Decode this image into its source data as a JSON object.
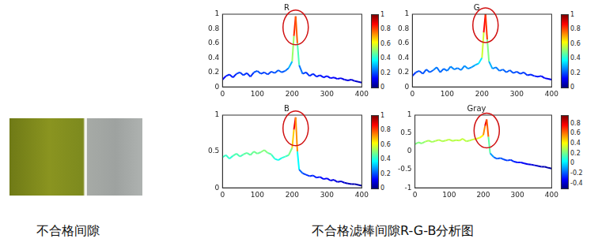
{
  "chart_data": [
    {
      "type": "line",
      "title": "R",
      "x": [
        0,
        10,
        20,
        30,
        40,
        50,
        60,
        70,
        80,
        90,
        100,
        110,
        120,
        130,
        140,
        150,
        160,
        170,
        180,
        190,
        200,
        205,
        210,
        215,
        220,
        230,
        240,
        250,
        260,
        270,
        280,
        290,
        300,
        310,
        320,
        330,
        340,
        350,
        360,
        370,
        380,
        390,
        400
      ],
      "values": [
        0.1,
        0.15,
        0.17,
        0.13,
        0.18,
        0.2,
        0.16,
        0.19,
        0.14,
        0.2,
        0.22,
        0.18,
        0.2,
        0.17,
        0.21,
        0.19,
        0.23,
        0.2,
        0.22,
        0.26,
        0.35,
        0.7,
        0.97,
        0.6,
        0.3,
        0.18,
        0.2,
        0.15,
        0.18,
        0.14,
        0.16,
        0.13,
        0.15,
        0.12,
        0.13,
        0.11,
        0.12,
        0.1,
        0.09,
        0.1,
        0.08,
        0.07,
        0.06
      ],
      "xlim": [
        0,
        400
      ],
      "xticks": [
        0,
        100,
        200,
        300,
        400
      ],
      "ylim": [
        0,
        1
      ],
      "yticks": [
        0,
        0.2,
        0.4,
        0.6,
        0.8,
        1
      ],
      "grid": false,
      "colorbar": {
        "range": [
          0,
          1
        ],
        "ticks": [
          0,
          0.2,
          0.4,
          0.6,
          0.8,
          1
        ]
      }
    },
    {
      "type": "line",
      "title": "G",
      "x": [
        0,
        10,
        20,
        30,
        40,
        50,
        60,
        70,
        80,
        90,
        100,
        110,
        120,
        130,
        140,
        150,
        160,
        170,
        180,
        190,
        200,
        205,
        210,
        215,
        220,
        230,
        240,
        250,
        260,
        270,
        280,
        290,
        300,
        310,
        320,
        330,
        340,
        350,
        360,
        370,
        380,
        390,
        400
      ],
      "values": [
        0.15,
        0.2,
        0.22,
        0.18,
        0.24,
        0.2,
        0.23,
        0.27,
        0.2,
        0.25,
        0.22,
        0.28,
        0.24,
        0.26,
        0.23,
        0.29,
        0.25,
        0.27,
        0.3,
        0.32,
        0.4,
        0.75,
        1.0,
        0.65,
        0.35,
        0.25,
        0.27,
        0.22,
        0.24,
        0.2,
        0.23,
        0.19,
        0.21,
        0.18,
        0.2,
        0.16,
        0.17,
        0.15,
        0.14,
        0.15,
        0.12,
        0.11,
        0.1
      ],
      "xlim": [
        0,
        400
      ],
      "xticks": [
        0,
        100,
        200,
        300,
        400
      ],
      "ylim": [
        0,
        1
      ],
      "yticks": [
        0,
        0.2,
        0.4,
        0.6,
        0.8,
        1
      ],
      "grid": false,
      "colorbar": {
        "range": [
          0,
          1
        ],
        "ticks": [
          0,
          0.2,
          0.4,
          0.6,
          0.8,
          1
        ]
      }
    },
    {
      "type": "line",
      "title": "B",
      "x": [
        0,
        10,
        20,
        30,
        40,
        50,
        60,
        70,
        80,
        90,
        100,
        110,
        120,
        130,
        140,
        150,
        160,
        170,
        180,
        190,
        200,
        205,
        210,
        215,
        220,
        230,
        240,
        250,
        260,
        270,
        280,
        290,
        300,
        310,
        320,
        330,
        340,
        350,
        360,
        370,
        380,
        390,
        400
      ],
      "values": [
        0.42,
        0.45,
        0.4,
        0.44,
        0.47,
        0.43,
        0.46,
        0.48,
        0.45,
        0.5,
        0.47,
        0.49,
        0.52,
        0.48,
        0.46,
        0.4,
        0.38,
        0.41,
        0.43,
        0.45,
        0.55,
        0.8,
        0.97,
        0.5,
        0.25,
        0.2,
        0.18,
        0.16,
        0.17,
        0.14,
        0.15,
        0.12,
        0.13,
        0.1,
        0.11,
        0.08,
        0.09,
        0.07,
        0.06,
        0.05,
        0.05,
        0.04,
        0.03
      ],
      "xlim": [
        0,
        400
      ],
      "xticks": [
        0,
        100,
        200,
        300,
        400
      ],
      "ylim": [
        0,
        1
      ],
      "yticks": [
        0,
        0.5,
        1
      ],
      "grid": false,
      "colorbar": {
        "range": [
          0,
          1
        ],
        "ticks": [
          0,
          0.2,
          0.4,
          0.6,
          0.8,
          1
        ]
      }
    },
    {
      "type": "line",
      "title": "Gray",
      "x": [
        0,
        10,
        20,
        30,
        40,
        50,
        60,
        70,
        80,
        90,
        100,
        110,
        120,
        130,
        140,
        150,
        160,
        170,
        180,
        190,
        200,
        205,
        210,
        215,
        220,
        230,
        240,
        250,
        260,
        270,
        280,
        290,
        300,
        310,
        320,
        330,
        340,
        350,
        360,
        370,
        380,
        390,
        400
      ],
      "values": [
        0.2,
        0.25,
        0.22,
        0.27,
        0.3,
        0.26,
        0.29,
        0.32,
        0.28,
        0.3,
        0.33,
        0.29,
        0.31,
        0.3,
        0.35,
        0.28,
        0.3,
        0.33,
        0.35,
        0.38,
        0.45,
        0.7,
        0.88,
        0.4,
        -0.05,
        -0.15,
        -0.2,
        -0.18,
        -0.22,
        -0.25,
        -0.23,
        -0.28,
        -0.3,
        -0.3,
        -0.33,
        -0.35,
        -0.36,
        -0.38,
        -0.4,
        -0.42,
        -0.42,
        -0.45,
        -0.47
      ],
      "xlim": [
        0,
        400
      ],
      "xticks": [
        0,
        100,
        200,
        300,
        400
      ],
      "ylim": [
        -1,
        1
      ],
      "yticks": [
        -1,
        -0.5,
        0,
        0.5,
        1
      ],
      "grid": false,
      "colorbar": {
        "range": [
          -0.5,
          0.95
        ],
        "ticks": [
          -0.4,
          -0.2,
          0,
          0.2,
          0.4,
          0.6,
          0.8
        ]
      }
    }
  ],
  "image_caption": "不合格间隙",
  "figure_caption": "不合格滤棒间隙R-G-B分析图"
}
